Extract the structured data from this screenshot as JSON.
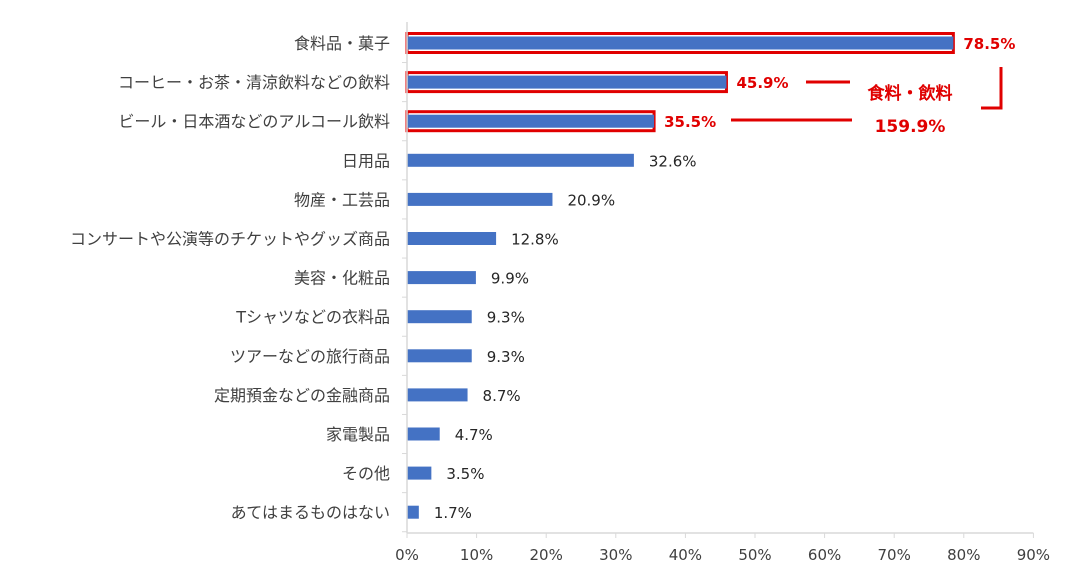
{
  "chart_data": {
    "type": "bar",
    "orientation": "horizontal",
    "categories": [
      "食料品・菓子",
      "コーヒー・お茶・清涼飲料などの飲料",
      "ビール・日本酒などのアルコール飲料",
      "日用品",
      "物産・工芸品",
      "コンサートや公演等のチケットやグッズ商品",
      "美容・化粧品",
      "Tシャツなどの衣料品",
      "ツアーなどの旅行商品",
      "定期預金などの金融商品",
      "家電製品",
      "その他",
      "あてはまるものはない"
    ],
    "values": [
      78.5,
      45.9,
      35.5,
      32.6,
      20.9,
      12.8,
      9.9,
      9.3,
      9.3,
      8.7,
      4.7,
      3.5,
      1.7
    ],
    "value_labels": [
      "78.5%",
      "45.9%",
      "35.5%",
      "32.6%",
      "20.9%",
      "12.8%",
      "9.9%",
      "9.3%",
      "9.3%",
      "8.7%",
      "4.7%",
      "3.5%",
      "1.7%"
    ],
    "highlighted": [
      0,
      1,
      2
    ],
    "xlim": [
      0,
      90
    ],
    "xticks": [
      0,
      10,
      20,
      30,
      40,
      50,
      60,
      70,
      80,
      90
    ],
    "xtick_labels": [
      "0%",
      "10%",
      "20%",
      "30%",
      "40%",
      "50%",
      "60%",
      "70%",
      "80%",
      "90%"
    ],
    "grid": false,
    "annotation": {
      "label": "食料・飲料",
      "total": "159.9%"
    }
  },
  "colors": {
    "bar": "#4472c4",
    "highlight": "#e00000",
    "axis": "#d9d9d9"
  }
}
